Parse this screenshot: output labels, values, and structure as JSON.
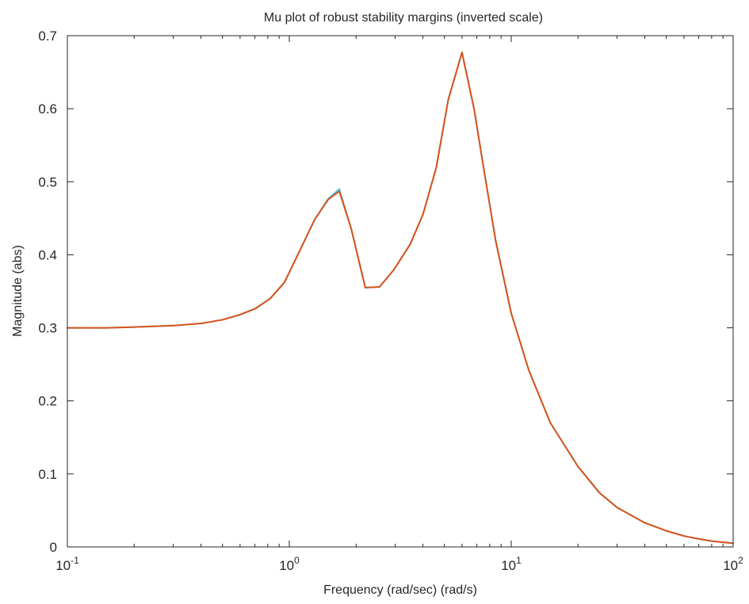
{
  "chart_data": {
    "type": "line",
    "title": "Mu plot of robust stability margins (inverted scale)",
    "xlabel": "Frequency (rad/sec)  (rad/s)",
    "ylabel": "Magnitude (abs)",
    "xscale": "log",
    "xlim": [
      0.1,
      100
    ],
    "ylim": [
      0,
      0.7
    ],
    "x_ticks": [
      {
        "value": 0.1,
        "base": "10",
        "exp": "-1"
      },
      {
        "value": 1,
        "base": "10",
        "exp": "0"
      },
      {
        "value": 10,
        "base": "10",
        "exp": "1"
      },
      {
        "value": 100,
        "base": "10",
        "exp": "2"
      }
    ],
    "y_ticks": [
      "0",
      "0.1",
      "0.2",
      "0.3",
      "0.4",
      "0.5",
      "0.6",
      "0.7"
    ],
    "grid": false,
    "legend": "none",
    "series": [
      {
        "color": "#4DBEEE",
        "x": [
          0.1,
          0.15,
          0.2,
          0.3,
          0.4,
          0.5,
          0.6,
          0.7,
          0.82,
          0.95,
          1.1,
          1.3,
          1.5,
          1.68,
          1.9,
          2.2,
          2.55,
          2.95,
          3.5,
          4.0,
          4.6,
          5.2,
          6.0,
          6.8,
          7.5,
          8.5,
          10,
          12,
          15,
          20,
          25,
          30,
          40,
          50,
          60,
          70,
          80,
          100
        ],
        "y": [
          0.3,
          0.3,
          0.301,
          0.303,
          0.306,
          0.311,
          0.318,
          0.326,
          0.34,
          0.362,
          0.402,
          0.448,
          0.477,
          0.49,
          0.436,
          0.355,
          0.356,
          0.379,
          0.414,
          0.455,
          0.52,
          0.612,
          0.677,
          0.6,
          0.52,
          0.42,
          0.32,
          0.242,
          0.17,
          0.11,
          0.074,
          0.054,
          0.033,
          0.022,
          0.015,
          0.011,
          0.008,
          0.005
        ]
      },
      {
        "color": "#D95319",
        "x": [
          0.1,
          0.15,
          0.2,
          0.3,
          0.4,
          0.5,
          0.6,
          0.7,
          0.82,
          0.95,
          1.1,
          1.3,
          1.5,
          1.68,
          1.9,
          2.2,
          2.55,
          2.95,
          3.5,
          4.0,
          4.6,
          5.2,
          6.0,
          6.8,
          7.5,
          8.5,
          10,
          12,
          15,
          20,
          25,
          30,
          40,
          50,
          60,
          70,
          80,
          100
        ],
        "y": [
          0.3,
          0.3,
          0.301,
          0.303,
          0.306,
          0.311,
          0.318,
          0.326,
          0.34,
          0.362,
          0.402,
          0.448,
          0.476,
          0.487,
          0.436,
          0.355,
          0.356,
          0.379,
          0.414,
          0.455,
          0.52,
          0.612,
          0.677,
          0.6,
          0.52,
          0.42,
          0.32,
          0.242,
          0.17,
          0.11,
          0.074,
          0.054,
          0.033,
          0.022,
          0.015,
          0.011,
          0.008,
          0.005
        ]
      }
    ]
  }
}
